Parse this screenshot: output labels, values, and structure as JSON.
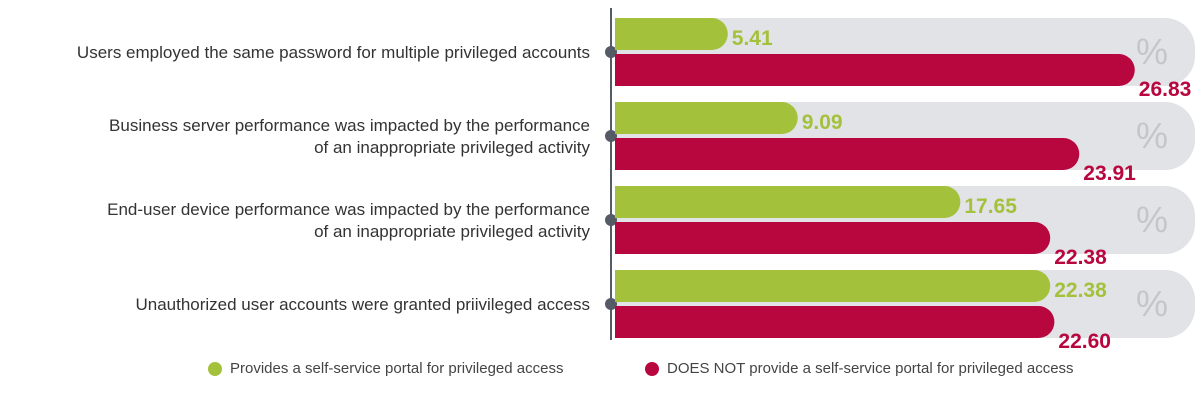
{
  "chart_data": {
    "type": "bar",
    "orientation": "horizontal",
    "categories": [
      [
        "Users employed the same password for multiple privileged accounts"
      ],
      [
        "Business server performance was impacted by the performance",
        "of an inappropriate privileged activity"
      ],
      [
        "End-user device performance was impacted by the performance",
        "of an inappropriate privileged activity"
      ],
      [
        "Unauthorized user accounts were granted priivileged access"
      ]
    ],
    "series": [
      {
        "name": "Provides a self-service portal for privileged access",
        "color": "#a4c13c",
        "values": [
          5.41,
          9.09,
          17.65,
          22.38
        ],
        "labels": [
          "5.41",
          "9.09",
          "17.65",
          "22.38"
        ]
      },
      {
        "name": "DOES NOT provide a self-service portal for privileged access",
        "color": "#b8063f",
        "values": [
          26.83,
          23.91,
          22.38,
          22.6
        ],
        "labels": [
          "26.83",
          "23.91",
          "22.38",
          "22.60"
        ]
      }
    ],
    "unit_symbol": "%",
    "xlim": [
      0,
      30
    ],
    "background_bar_color": "#e1e3e6",
    "axis_color": "#555b66",
    "grid": false,
    "legend_position": "bottom"
  }
}
